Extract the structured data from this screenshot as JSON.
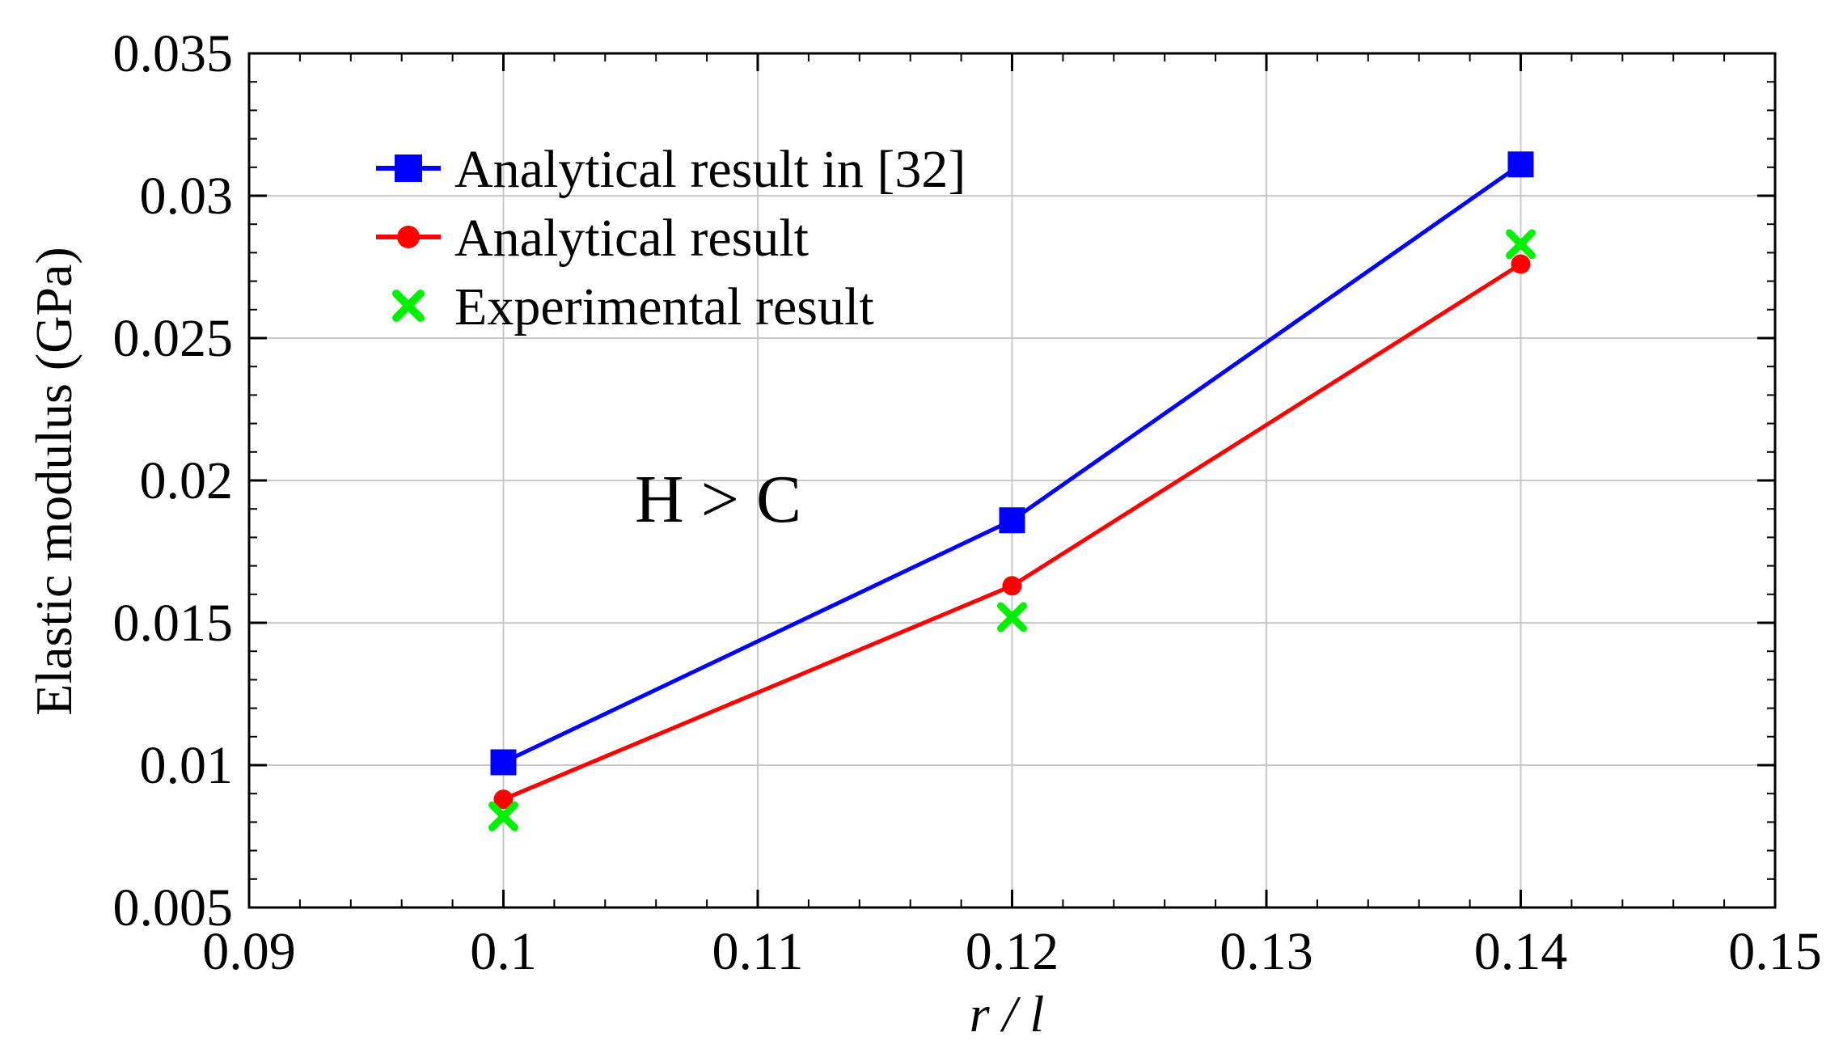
{
  "chart_data": {
    "type": "line",
    "xlabel": "r / l",
    "ylabel": "Elastic modulus (GPa)",
    "xlim": [
      0.09,
      0.15
    ],
    "ylim": [
      0.005,
      0.035
    ],
    "xticks": [
      "0.09",
      "0.1",
      "0.11",
      "0.12",
      "0.13",
      "0.14",
      "0.15"
    ],
    "yticks": [
      "0.005",
      "0.01",
      "0.015",
      "0.02",
      "0.025",
      "0.03",
      "0.035"
    ],
    "grid": true,
    "legend_position": "top-left",
    "annotation": "H > C",
    "series": [
      {
        "name": "Analytical result in [32]",
        "color": "#0000ff",
        "marker": "square",
        "line": true,
        "x": [
          0.1,
          0.12,
          0.14
        ],
        "y": [
          0.0101,
          0.0186,
          0.0311
        ]
      },
      {
        "name": "Analytical result",
        "color": "#ff0000",
        "marker": "circle",
        "line": true,
        "x": [
          0.1,
          0.12,
          0.14
        ],
        "y": [
          0.0088,
          0.0163,
          0.0276
        ]
      },
      {
        "name": "Experimental result",
        "color": "#00ee00",
        "marker": "x",
        "line": false,
        "x": [
          0.1,
          0.12,
          0.14
        ],
        "y": [
          0.0082,
          0.0152,
          0.0283
        ]
      }
    ]
  }
}
